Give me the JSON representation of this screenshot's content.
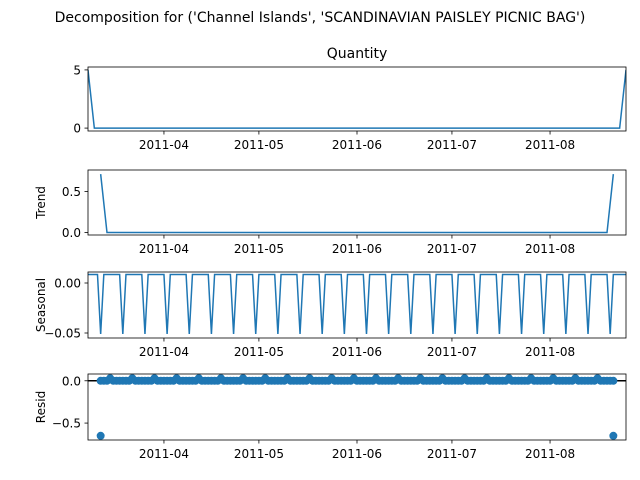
{
  "suptitle": "Decomposition for ('Channel Islands', 'SCANDINAVIAN PAISLEY PICNIC BAG')",
  "x_tick_labels": [
    "2011-04",
    "2011-05",
    "2011-06",
    "2011-07",
    "2011-08"
  ],
  "colors": {
    "line": "#1f77b4",
    "axis": "#000000",
    "background": "#ffffff"
  },
  "chart_data": [
    {
      "type": "line",
      "panel": "observed",
      "title": "Quantity",
      "ylabel": "",
      "x_range": [
        "2011-03-08",
        "2011-08-25"
      ],
      "ylim": [
        -0.25,
        5.25
      ],
      "yticks": [
        0,
        5
      ],
      "ytick_labels": [
        "0",
        "5"
      ],
      "x": [
        "2011-03-08",
        "2011-03-10",
        "2011-08-23",
        "2011-08-25"
      ],
      "values": [
        5,
        0,
        0,
        5
      ]
    },
    {
      "type": "line",
      "panel": "trend",
      "title": "",
      "ylabel": "Trend",
      "x_range": [
        "2011-03-08",
        "2011-08-25"
      ],
      "ylim": [
        -0.03,
        0.76
      ],
      "yticks": [
        0,
        0.5
      ],
      "ytick_labels": [
        "0.0",
        "0.5"
      ],
      "x": [
        "2011-03-12",
        "2011-03-14",
        "2011-08-19",
        "2011-08-21"
      ],
      "values": [
        0.71,
        0,
        0,
        0.71
      ]
    },
    {
      "type": "line",
      "panel": "seasonal",
      "title": "",
      "ylabel": "Seasonal",
      "x_range": [
        "2011-03-08",
        "2011-08-25"
      ],
      "ylim": [
        -0.055,
        0.011
      ],
      "yticks": [
        0,
        -0.05
      ],
      "ytick_labels": [
        "0.00",
        "−0.05"
      ],
      "period_days": 7,
      "pattern_values": [
        0.0085,
        0.0085,
        0.0085,
        0.0085,
        0.0085,
        0.0085,
        -0.051
      ],
      "pattern_start": "2011-03-06"
    },
    {
      "type": "scatter",
      "panel": "resid",
      "title": "",
      "ylabel": "Resid",
      "x_range": [
        "2011-03-08",
        "2011-08-25"
      ],
      "ylim": [
        -0.7,
        0.08
      ],
      "yticks": [
        0,
        -0.5
      ],
      "ytick_labels": [
        "0.0",
        "−0.5"
      ],
      "zero_line": true,
      "x_start": "2011-03-12",
      "x_end": "2011-08-21",
      "value": 0,
      "bump_period_days": 7,
      "bump_value": 0.03,
      "outliers": [
        {
          "x": "2011-03-12",
          "y": -0.65
        },
        {
          "x": "2011-08-21",
          "y": -0.65
        }
      ]
    }
  ]
}
